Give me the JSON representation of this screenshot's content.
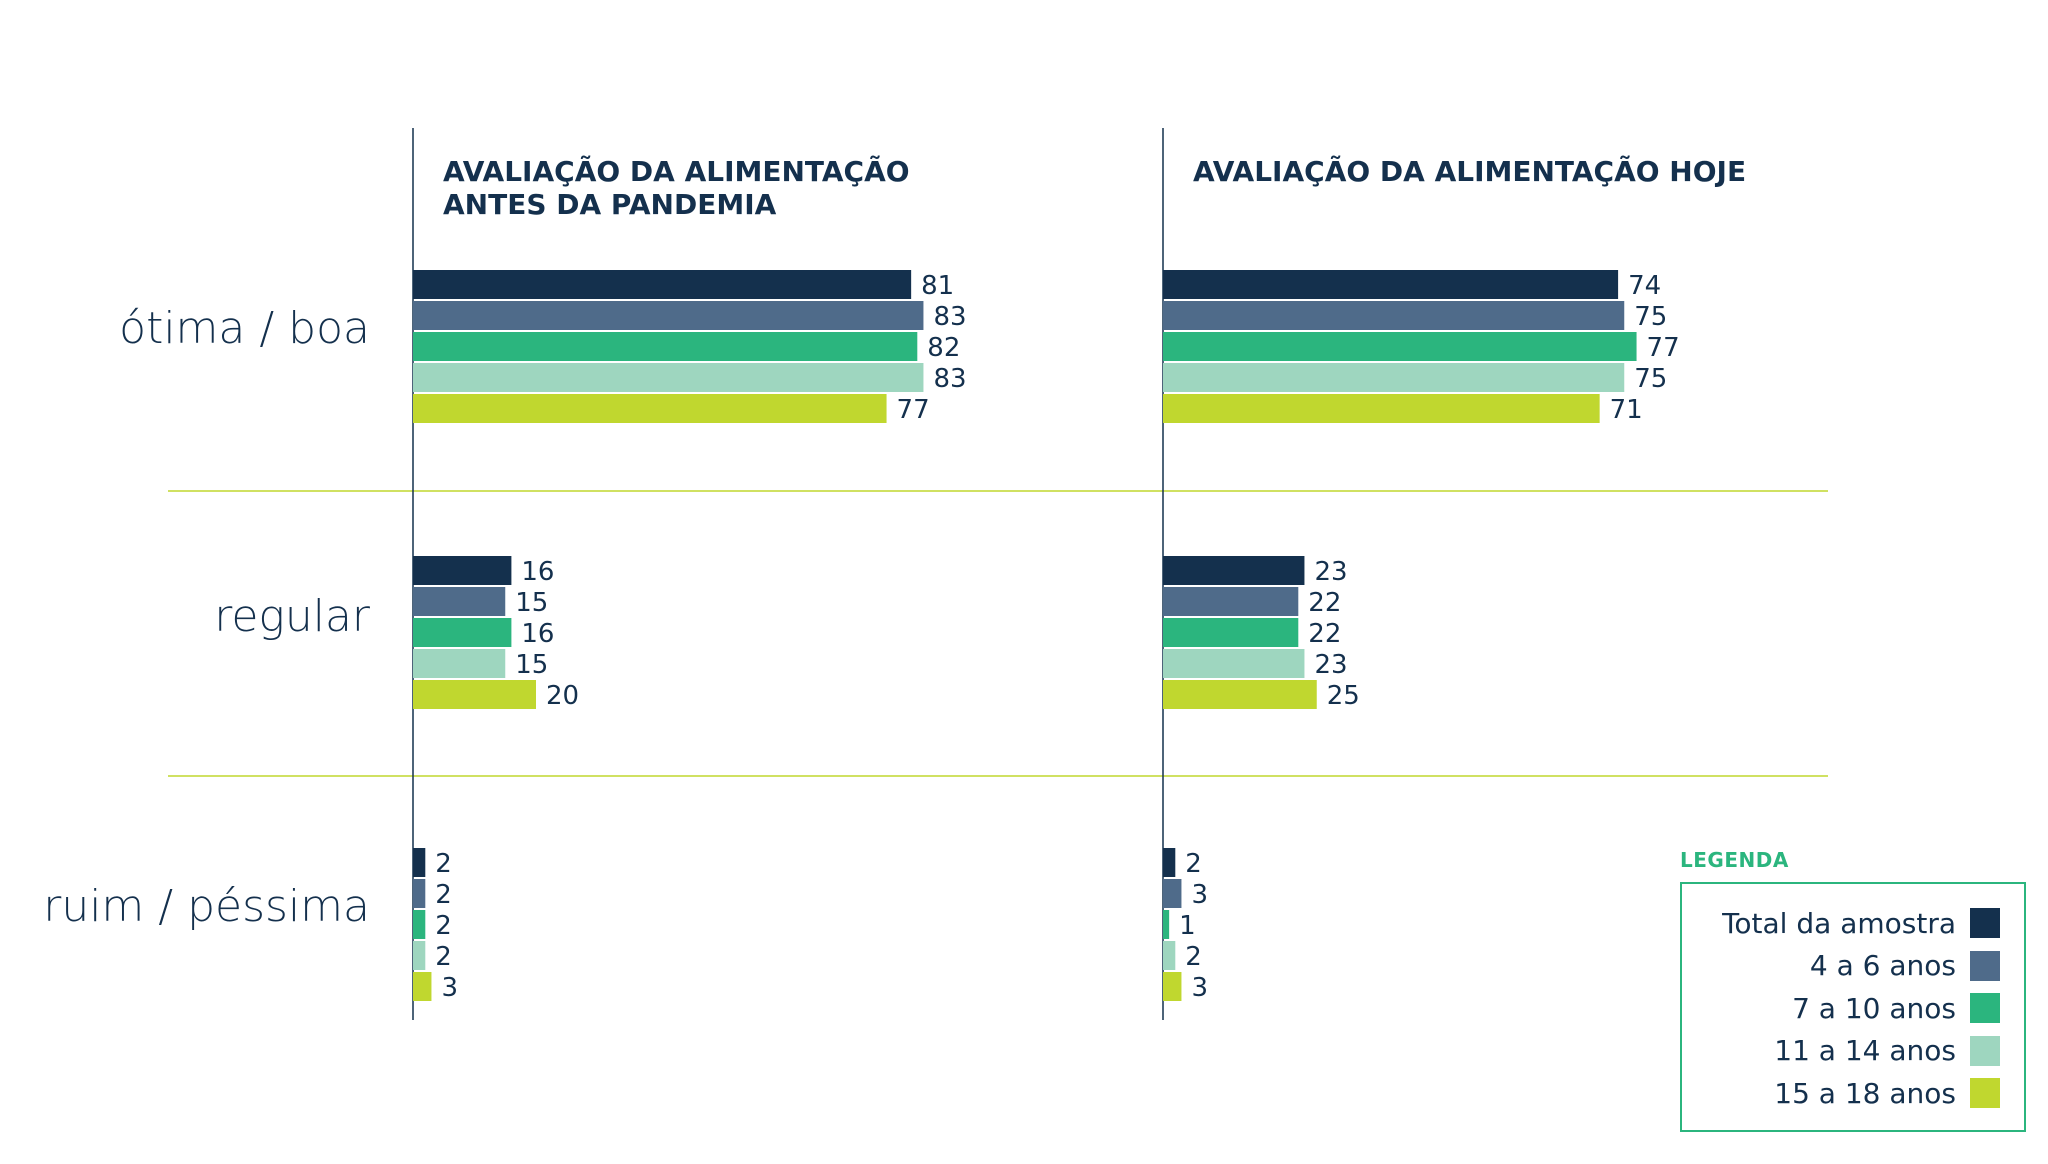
{
  "chart_data": {
    "type": "bar",
    "orientation": "horizontal",
    "categories": [
      "ótima / boa",
      "regular",
      "ruim / péssima"
    ],
    "panels": [
      {
        "title": [
          "AVALIAÇÃO DA ALIMENTAÇÃO",
          "ANTES DA PANDEMIA"
        ],
        "series": [
          {
            "name": "Total da amostra",
            "values": [
              81,
              16,
              2
            ]
          },
          {
            "name": "4 a 6 anos",
            "values": [
              83,
              15,
              2
            ]
          },
          {
            "name": "7 a 10 anos",
            "values": [
              82,
              16,
              2
            ]
          },
          {
            "name": "11 a 14 anos",
            "values": [
              83,
              15,
              2
            ]
          },
          {
            "name": "15 a 18 anos",
            "values": [
              77,
              20,
              3
            ]
          }
        ]
      },
      {
        "title": [
          "AVALIAÇÃO DA ALIMENTAÇÃO HOJE"
        ],
        "series": [
          {
            "name": "Total da amostra",
            "values": [
              74,
              23,
              2
            ]
          },
          {
            "name": "4 a 6 anos",
            "values": [
              75,
              22,
              3
            ]
          },
          {
            "name": "7 a 10 anos",
            "values": [
              77,
              22,
              1
            ]
          },
          {
            "name": "11 a 14 anos",
            "values": [
              75,
              23,
              2
            ]
          },
          {
            "name": "15 a 18 anos",
            "values": [
              71,
              25,
              3
            ]
          }
        ]
      }
    ],
    "legend": {
      "title": "LEGENDA",
      "placement": "bottom-right",
      "items": [
        "Total da amostra",
        "4 a 6 anos",
        "7 a 10 anos",
        "11 a 14 anos",
        "15 a 18 anos"
      ]
    },
    "colors": [
      "#14304d",
      "#4f6b8a",
      "#2bb57e",
      "#9ed6bf",
      "#c0d72f"
    ],
    "grid": false
  }
}
